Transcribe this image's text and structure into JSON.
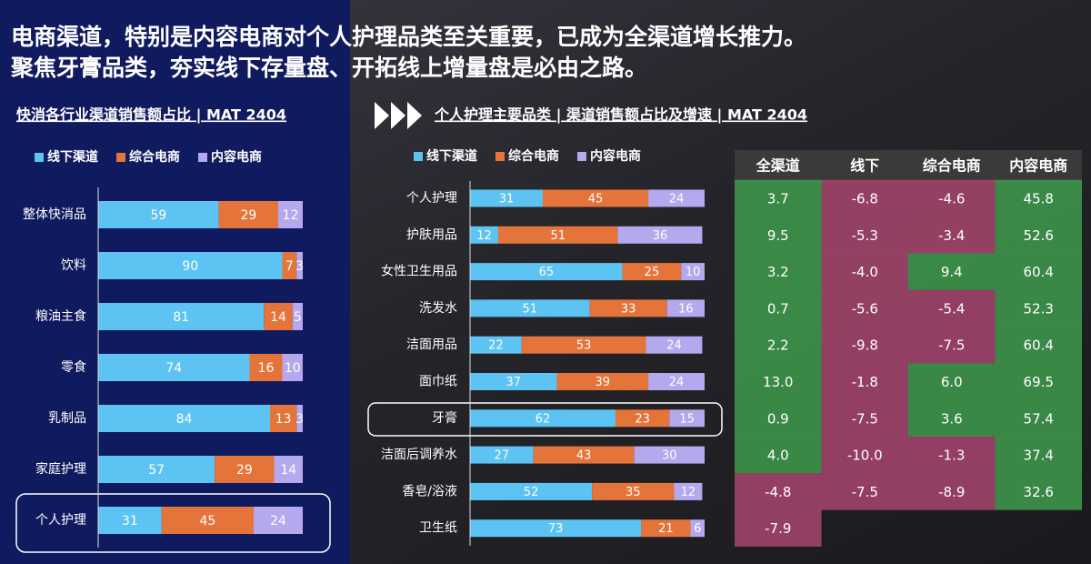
{
  "headline": [
    "电商渠道，特别是内容电商对个人护理品类至关重要，已成为全渠道增长推力。",
    "聚焦牙膏品类，夯实线下存量盘、开拓线上增量盘是必由之路。"
  ],
  "chart_data": [
    {
      "type": "bar",
      "orientation": "horizontal",
      "stacked": true,
      "title": "快消各行业渠道销售额占比 | MAT 2404",
      "categories": [
        "整体快消品",
        "饮料",
        "粮油主食",
        "零食",
        "乳制品",
        "家庭护理",
        "个人护理"
      ],
      "series": [
        {
          "name": "线下渠道",
          "color": "#5cc3f2",
          "values": [
            59,
            90,
            81,
            74,
            84,
            57,
            31
          ]
        },
        {
          "name": "综合电商",
          "color": "#e5743a",
          "values": [
            29,
            7,
            14,
            16,
            13,
            29,
            45
          ]
        },
        {
          "name": "内容电商",
          "color": "#b4a8ee",
          "values": [
            12,
            3,
            5,
            10,
            3,
            14,
            24
          ]
        }
      ],
      "xlim": [
        0,
        100
      ]
    },
    {
      "type": "bar",
      "orientation": "horizontal",
      "stacked": true,
      "title": "个人护理主要品类 | 渠道销售额占比及增速 | MAT 2404",
      "categories": [
        "个人护理",
        "护肤用品",
        "女性卫生用品",
        "洗发水",
        "洁面用品",
        "面巾纸",
        "牙膏",
        "洁面后调养水",
        "香皂/浴液",
        "卫生纸"
      ],
      "series": [
        {
          "name": "线下渠道",
          "color": "#5cc3f2",
          "values": [
            31,
            12,
            65,
            51,
            22,
            37,
            62,
            27,
            52,
            73
          ]
        },
        {
          "name": "综合电商",
          "color": "#e5743a",
          "values": [
            45,
            51,
            25,
            33,
            53,
            39,
            23,
            43,
            35,
            21
          ]
        },
        {
          "name": "内容电商",
          "color": "#b4a8ee",
          "values": [
            24,
            36,
            10,
            16,
            24,
            24,
            15,
            30,
            12,
            6
          ]
        }
      ],
      "xlim": [
        0,
        100
      ]
    }
  ],
  "table": {
    "columns": [
      "全渠道",
      "线下",
      "综合电商",
      "内容电商"
    ],
    "positive_color": "#3f9b4c",
    "negative_color": "#a8456f",
    "rows": [
      [
        "3.7",
        "-6.8",
        "-4.6",
        "45.8"
      ],
      [
        "9.5",
        "-5.3",
        "-3.4",
        "52.6"
      ],
      [
        "3.2",
        "-4.0",
        "9.4",
        "60.4"
      ],
      [
        "0.7",
        "-5.6",
        "-5.4",
        "52.3"
      ],
      [
        "2.2",
        "-9.8",
        "-7.5",
        "60.4"
      ],
      [
        "13.0",
        "-1.8",
        "6.0",
        "69.5"
      ],
      [
        "0.9",
        "-7.5",
        "3.6",
        "57.4"
      ],
      [
        "4.0",
        "-10.0",
        "-1.3",
        "37.4"
      ],
      [
        "-4.8",
        "-7.5",
        "-8.9",
        "32.6"
      ],
      [
        "-7.9",
        null,
        null,
        null
      ]
    ]
  }
}
